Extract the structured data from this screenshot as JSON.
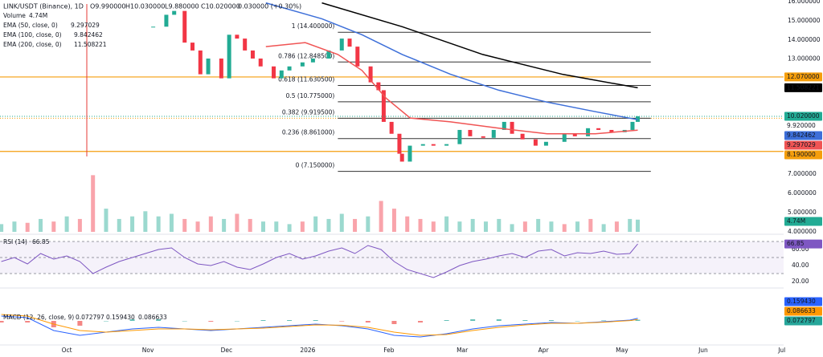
{
  "chart_data": {
    "type": "candlestick",
    "title": "LINK/USDT (Binance), 1D",
    "ohlc": [
      "O9.990000",
      "H10.030000",
      "L9.880000",
      "C10.020000",
      "0.030000 (+0.30%)"
    ],
    "xlim": [
      -25.5,
      273.7
    ],
    "xticks": [
      {
        "value": 0,
        "label": "Oct"
      },
      {
        "value": 31,
        "label": "Nov"
      },
      {
        "value": 61,
        "label": "Dec"
      },
      {
        "value": 92,
        "label": "2026"
      },
      {
        "value": 123,
        "label": "Feb"
      },
      {
        "value": 151,
        "label": "Mar"
      },
      {
        "value": 182,
        "label": "Apr"
      },
      {
        "value": 212,
        "label": "May"
      },
      {
        "value": 243,
        "label": "Jun"
      },
      {
        "value": 273,
        "label": "Jul"
      }
    ],
    "ylim": [
      4,
      16.08
    ],
    "yticks": [
      {
        "value": 16,
        "label": "16.000000"
      },
      {
        "value": 15,
        "label": "15.000000"
      },
      {
        "value": 14,
        "label": "14.000000"
      },
      {
        "value": 13,
        "label": "13.000000"
      },
      {
        "value": 7,
        "label": "7.000000"
      },
      {
        "value": 6,
        "label": "6.000000"
      },
      {
        "value": 5,
        "label": "5.000000"
      },
      {
        "value": 4,
        "label": "4.000000"
      }
    ],
    "up_color": "#22ab94",
    "down_color": "#f23645",
    "price": {
      "x": [
        33,
        38,
        41,
        45,
        48,
        51,
        54,
        59,
        62,
        65,
        68,
        71,
        74,
        79,
        82,
        85,
        90,
        94,
        100,
        105,
        108,
        111,
        116,
        119,
        121,
        124,
        127,
        128,
        131,
        136,
        140,
        145,
        150,
        154,
        159,
        163,
        167,
        170,
        174,
        179,
        183,
        190,
        194,
        199,
        203,
        208,
        213,
        216,
        218
      ],
      "values": [
        14.69,
        15.31,
        15.51,
        13.86,
        13.45,
        12.21,
        13.03,
        12.0,
        14.27,
        14.07,
        13.45,
        13.03,
        12.62,
        12.0,
        12.41,
        12.62,
        12.83,
        13.03,
        13.45,
        14.07,
        13.65,
        12.62,
        11.79,
        11.38,
        9.73,
        9.11,
        8.07,
        7.66,
        8.49,
        8.57,
        8.49,
        8.57,
        9.31,
        8.98,
        8.9,
        9.31,
        9.73,
        9.11,
        8.82,
        8.49,
        8.69,
        9.11,
        8.98,
        9.4,
        9.31,
        9.19,
        9.31,
        9.73,
        10.02
      ],
      "last_label": "10.020000"
    },
    "volume": {
      "name": "Volume",
      "x": [
        -25,
        -20,
        -15,
        -10,
        -5,
        0,
        5,
        10,
        15,
        20,
        25,
        30,
        35,
        40,
        45,
        50,
        55,
        60,
        65,
        70,
        75,
        80,
        85,
        90,
        95,
        100,
        105,
        110,
        115,
        120,
        125,
        130,
        135,
        140,
        145,
        150,
        155,
        160,
        165,
        170,
        175,
        180,
        185,
        190,
        195,
        200,
        205,
        210,
        215,
        218
      ],
      "values": [
        3,
        4,
        3.5,
        5,
        4,
        6,
        5,
        22,
        9,
        5,
        6,
        8,
        6,
        7,
        5,
        4,
        6,
        5,
        7,
        5,
        4,
        4,
        3,
        4,
        6,
        5,
        7,
        5,
        6,
        12,
        9,
        6,
        5,
        4,
        6,
        4,
        5,
        4,
        5,
        3,
        4,
        5,
        4,
        3,
        4,
        5,
        3,
        4,
        5,
        4.74
      ],
      "last_label": "4.74M",
      "ylim": [
        0,
        90
      ],
      "up_color": "rgba(34,171,148,0.45)",
      "down_color": "rgba(242,54,69,0.45)"
    },
    "series": [
      {
        "name": "EMA (50, close, 0)",
        "color": "#f05454",
        "x": [
          76,
          91,
          103.5,
          112.7,
          121.9,
          131.1,
          146.5,
          164.9,
          183.4,
          201.8,
          218
        ],
        "values": [
          13.65,
          13.86,
          13.24,
          12.41,
          10.97,
          9.93,
          9.73,
          9.4,
          9.11,
          9.11,
          9.297029
        ]
      },
      {
        "name": "EMA (100, close, 0)",
        "color": "#3d6fd9",
        "x": [
          76,
          97.4,
          112.7,
          128.1,
          146.5,
          164.9,
          183.4,
          201.8,
          218
        ],
        "values": [
          15.93,
          15.1,
          14.27,
          13.24,
          12.21,
          11.38,
          10.76,
          10.26,
          9.842462
        ]
      },
      {
        "name": "EMA (200, close, 0)",
        "color": "#000000",
        "x": [
          97.4,
          128.1,
          158.8,
          189.5,
          218
        ],
        "values": [
          15.93,
          14.69,
          13.24,
          12.2,
          11.508221
        ]
      }
    ],
    "fib": {
      "x_range": [
        103.5,
        223
      ],
      "color": "#333333",
      "levels": [
        {
          "label": "1 (14.400000)",
          "value": 14.4
        },
        {
          "label": "0.786 (12.848500)",
          "value": 12.8485
        },
        {
          "label": "0.618 (11.630500)",
          "value": 11.6305
        },
        {
          "label": "0.5 (10.775000)",
          "value": 10.775
        },
        {
          "label": "0.382 (9.919500)",
          "value": 9.9195
        },
        {
          "label": "0.236 (8.861000)",
          "value": 8.861
        },
        {
          "label": "0 (7.150000)",
          "value": 7.15
        }
      ]
    },
    "hlines": [
      {
        "value": 12.07,
        "label": "12.070000",
        "color": "#f59e0b",
        "style": "solid"
      },
      {
        "value": 9.92,
        "label": "9.920000",
        "color": "#f59e0b",
        "style": "dotted"
      },
      {
        "value": 8.19,
        "label": "8.190000",
        "color": "#f59e0b",
        "style": "solid"
      }
    ],
    "rsi": {
      "name": "RSI (14)",
      "color": "#7e57c2",
      "x": [
        -25,
        -20,
        -15,
        -10,
        -5,
        0,
        5,
        10,
        15,
        20,
        25,
        30,
        35,
        40,
        45,
        50,
        55,
        60,
        65,
        70,
        75,
        80,
        85,
        90,
        95,
        100,
        105,
        110,
        115,
        120,
        125,
        130,
        135,
        140,
        145,
        150,
        155,
        160,
        165,
        170,
        175,
        180,
        185,
        190,
        195,
        200,
        205,
        210,
        215,
        218
      ],
      "values": [
        45,
        50,
        42,
        55,
        48,
        52,
        45,
        30,
        38,
        45,
        50,
        55,
        60,
        62,
        50,
        42,
        40,
        45,
        38,
        35,
        42,
        50,
        55,
        48,
        52,
        58,
        62,
        55,
        65,
        60,
        45,
        35,
        30,
        25,
        32,
        40,
        45,
        48,
        52,
        55,
        50,
        58,
        60,
        52,
        56,
        55,
        58,
        54,
        55,
        66.85
      ],
      "ylim": [
        14,
        76
      ],
      "yticks": [
        {
          "value": 60,
          "label": "60.00"
        },
        {
          "value": 40,
          "label": "40.00"
        },
        {
          "value": 20,
          "label": "20.00"
        }
      ],
      "levels": [
        70,
        50,
        30
      ]
    },
    "macd": {
      "name": "MACD (12, 26, close, 9)",
      "x": [
        -25,
        -15,
        -5,
        5,
        15,
        25,
        35,
        45,
        55,
        65,
        75,
        85,
        95,
        105,
        115,
        125,
        135,
        145,
        155,
        165,
        175,
        185,
        195,
        205,
        215,
        218
      ],
      "ylim": [
        -1.6,
        1.9
      ],
      "histogram": {
        "color": "#26a69a",
        "neg_color": "#ef5350",
        "values": [
          -0.1,
          -0.1,
          -0.4,
          -0.3,
          0,
          0.1,
          0.1,
          0,
          -0.05,
          0,
          0.05,
          0.05,
          0.05,
          -0.03,
          -0.1,
          -0.2,
          -0.1,
          0.05,
          0.1,
          0.1,
          0.05,
          0.05,
          0,
          0.03,
          0.03,
          0.072797
        ]
      },
      "macd": {
        "color": "#2962ff",
        "last_label": "0.159430",
        "values": [
          0.3,
          0.2,
          -0.6,
          -0.9,
          -0.7,
          -0.5,
          -0.4,
          -0.5,
          -0.6,
          -0.5,
          -0.4,
          -0.3,
          -0.2,
          -0.3,
          -0.5,
          -0.9,
          -1.0,
          -0.8,
          -0.5,
          -0.3,
          -0.2,
          -0.1,
          -0.15,
          -0.05,
          0.05,
          0.15943
        ]
      },
      "signal": {
        "color": "#ff9800",
        "values": [
          0.4,
          0.3,
          -0.2,
          -0.6,
          -0.7,
          -0.6,
          -0.5,
          -0.5,
          -0.55,
          -0.5,
          -0.45,
          -0.35,
          -0.25,
          -0.27,
          -0.4,
          -0.7,
          -0.9,
          -0.85,
          -0.6,
          -0.4,
          -0.25,
          -0.15,
          -0.15,
          -0.08,
          0.02,
          0.086633
        ]
      }
    }
  }
}
